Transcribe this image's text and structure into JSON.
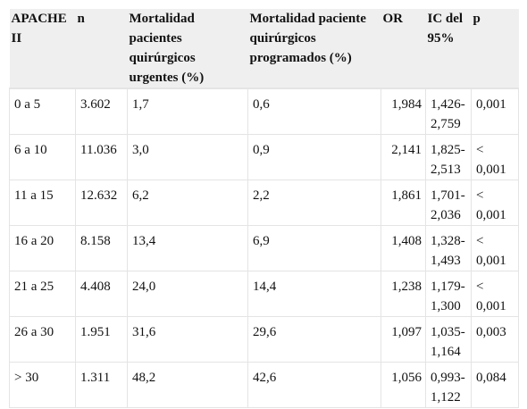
{
  "table": {
    "headers": [
      "APACHE II",
      "n",
      "Mortalidad pacientes quirúrgicos urgentes (%)",
      "Mortalidad paciente quirúrgicos programados (%)",
      "OR",
      "IC del 95%",
      "p"
    ],
    "rows": [
      {
        "apache": "0 a 5",
        "n": "3.602",
        "urgentes": "1,7",
        "programados": "0,6",
        "or": "1,984",
        "ic": "1,426-2,759",
        "p": "0,001"
      },
      {
        "apache": "6 a 10",
        "n": "11.036",
        "urgentes": "3,0",
        "programados": "0,9",
        "or": "2,141",
        "ic": "1,825-2,513",
        "p": "< 0,001"
      },
      {
        "apache": "11 a 15",
        "n": "12.632",
        "urgentes": "6,2",
        "programados": "2,2",
        "or": "1,861",
        "ic": "1,701-2,036",
        "p": "< 0,001"
      },
      {
        "apache": "16 a 20",
        "n": "8.158",
        "urgentes": "13,4",
        "programados": "6,9",
        "or": "1,408",
        "ic": "1,328-1,493",
        "p": "< 0,001"
      },
      {
        "apache": "21 a 25",
        "n": "4.408",
        "urgentes": "24,0",
        "programados": "14,4",
        "or": "1,238",
        "ic": "1,179-1,300",
        "p": "< 0,001"
      },
      {
        "apache": "26 a 30",
        "n": "1.951",
        "urgentes": "31,6",
        "programados": "29,6",
        "or": "1,097",
        "ic": "1,035-1,164",
        "p": "0,003"
      },
      {
        "apache": "> 30",
        "n": "1.311",
        "urgentes": "48,2",
        "programados": "42,6",
        "or": "1,056",
        "ic": "0,993-1,122",
        "p": "0,084"
      }
    ]
  }
}
